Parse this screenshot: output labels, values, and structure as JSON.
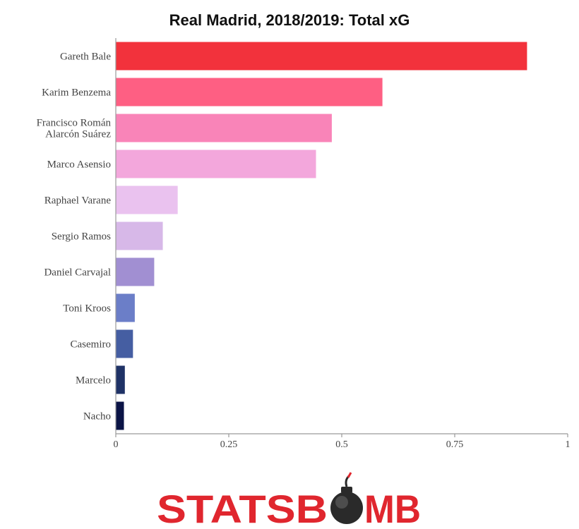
{
  "chart_data": {
    "type": "bar",
    "orientation": "horizontal",
    "title": "Real Madrid, 2018/2019: Total xG",
    "xlabel": "",
    "ylabel": "",
    "xlim": [
      0,
      1
    ],
    "x_ticks": [
      {
        "value": 0,
        "label": "0"
      },
      {
        "value": 0.25,
        "label": "0.25"
      },
      {
        "value": 0.5,
        "label": "0.5"
      },
      {
        "value": 0.75,
        "label": "0.75"
      },
      {
        "value": 1,
        "label": "1"
      }
    ],
    "grid": false,
    "legend": "none",
    "categories": [
      [
        "Gareth Bale"
      ],
      [
        "Karim Benzema"
      ],
      [
        "Francisco Román",
        "Alarcón Suárez"
      ],
      [
        "Marco Asensio"
      ],
      [
        "Raphael Varane"
      ],
      [
        "Sergio Ramos"
      ],
      [
        "Daniel Carvajal"
      ],
      [
        "Toni Kroos"
      ],
      [
        "Casemiro"
      ],
      [
        "Marcelo"
      ],
      [
        "Nacho"
      ]
    ],
    "values": [
      0.91,
      0.59,
      0.478,
      0.443,
      0.137,
      0.104,
      0.085,
      0.042,
      0.038,
      0.02,
      0.018
    ],
    "colors": [
      "#f2323c",
      "#fe5f83",
      "#f984b8",
      "#f3a7dc",
      "#eac2ef",
      "#d7b8e8",
      "#a18fd2",
      "#6b7ec8",
      "#455ea2",
      "#1f3266",
      "#0b1446"
    ]
  },
  "logo": {
    "text_left": "STATSB",
    "text_right": "MB",
    "bomb_icon": "bomb-icon",
    "brand_color": "#e0262e"
  }
}
